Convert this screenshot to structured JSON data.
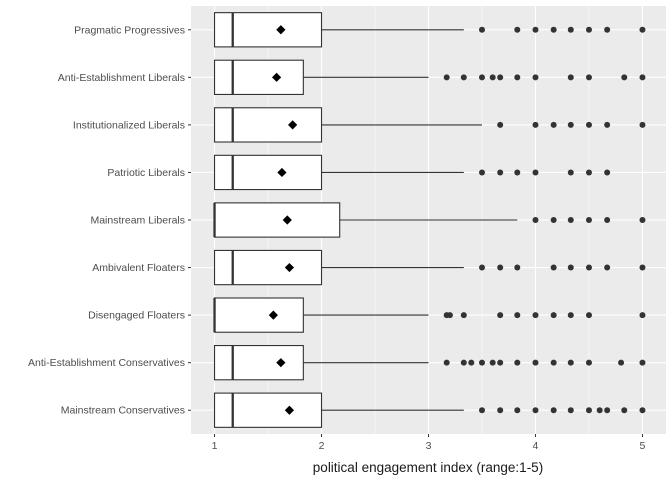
{
  "chart_data": {
    "type": "box",
    "title": "",
    "xlabel": "political engagement index (range:1-5)",
    "ylabel": "",
    "xlim": [
      0.78,
      5.22
    ],
    "x_ticks": [
      1,
      2,
      3,
      4,
      5
    ],
    "grid": true,
    "legend": "none",
    "colors": {
      "panel": "#ebebeb",
      "grid_major": "#ffffff",
      "box_fill": "#ffffff",
      "box_line": "#333333",
      "points": "#333333"
    },
    "categories": [
      {
        "name": "Pragmatic Progressives",
        "min": 1,
        "q1": 1,
        "median": 1.17,
        "q3": 2,
        "whisker_high": 3.33,
        "mean": 1.62,
        "outliers": [
          3.5,
          3.83,
          4,
          4.17,
          4.33,
          4.5,
          4.67,
          5
        ]
      },
      {
        "name": "Anti-Establishment Liberals",
        "min": 1,
        "q1": 1,
        "median": 1.17,
        "q3": 1.83,
        "whisker_high": 3,
        "mean": 1.58,
        "outliers": [
          3.17,
          3.33,
          3.5,
          3.6,
          3.67,
          3.83,
          4,
          4.33,
          4.5,
          4.83,
          5
        ]
      },
      {
        "name": "Institutionalized Liberals",
        "min": 1,
        "q1": 1,
        "median": 1.17,
        "q3": 2,
        "whisker_high": 3.5,
        "mean": 1.73,
        "outliers": [
          3.67,
          4,
          4.17,
          4.33,
          4.5,
          4.67,
          5
        ]
      },
      {
        "name": "Patriotic Liberals",
        "min": 1,
        "q1": 1,
        "median": 1.17,
        "q3": 2,
        "whisker_high": 3.33,
        "mean": 1.63,
        "outliers": [
          3.5,
          3.67,
          3.83,
          4,
          4.33,
          4.5,
          4.67
        ]
      },
      {
        "name": "Mainstream Liberals",
        "min": 1,
        "q1": 1,
        "median": 1,
        "q3": 2.17,
        "whisker_high": 3.83,
        "mean": 1.68,
        "outliers": [
          4,
          4.17,
          4.33,
          4.5,
          4.67,
          5
        ]
      },
      {
        "name": "Ambivalent Floaters",
        "min": 1,
        "q1": 1,
        "median": 1.17,
        "q3": 2,
        "whisker_high": 3.33,
        "mean": 1.7,
        "outliers": [
          3.5,
          3.67,
          3.83,
          4.17,
          4.33,
          4.5,
          4.67,
          5
        ]
      },
      {
        "name": "Disengaged Floaters",
        "min": 1,
        "q1": 1,
        "median": 1,
        "q3": 1.83,
        "whisker_high": 3,
        "mean": 1.55,
        "outliers": [
          3.17,
          3.2,
          3.33,
          3.67,
          3.83,
          4,
          4.17,
          4.33,
          4.5,
          5
        ]
      },
      {
        "name": "Anti-Establishment Conservatives",
        "min": 1,
        "q1": 1,
        "median": 1.17,
        "q3": 1.83,
        "whisker_high": 3,
        "mean": 1.62,
        "outliers": [
          3.17,
          3.33,
          3.4,
          3.5,
          3.6,
          3.67,
          3.83,
          4,
          4.17,
          4.33,
          4.5,
          4.8,
          5
        ]
      },
      {
        "name": "Mainstream Conservatives",
        "min": 1,
        "q1": 1,
        "median": 1.17,
        "q3": 2,
        "whisker_high": 3.33,
        "mean": 1.7,
        "outliers": [
          3.5,
          3.67,
          3.83,
          4,
          4.17,
          4.33,
          4.5,
          4.6,
          4.67,
          4.83,
          5
        ]
      }
    ]
  }
}
